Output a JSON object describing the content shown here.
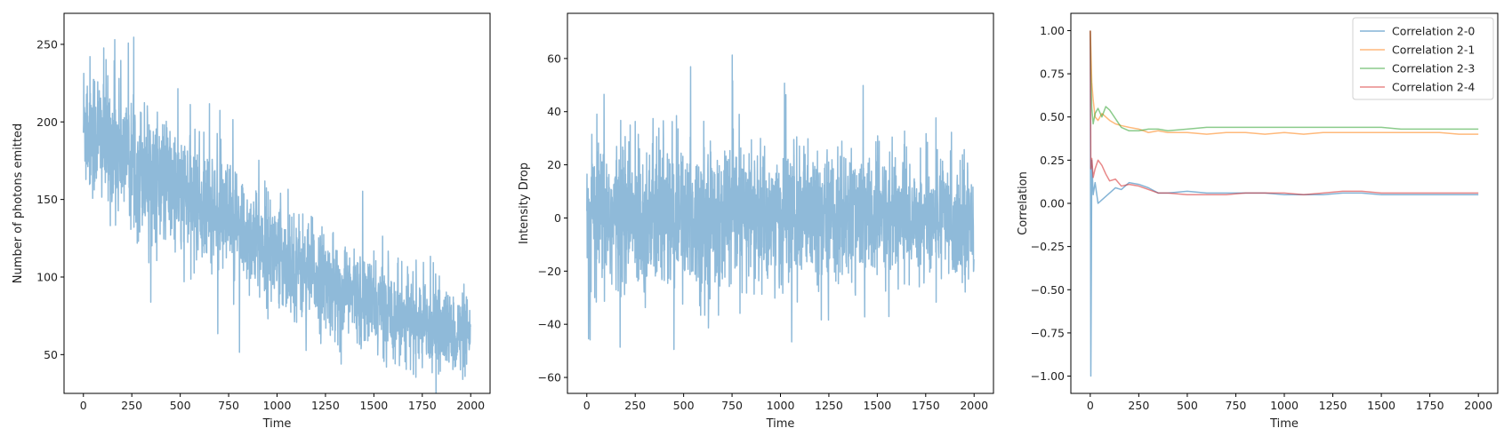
{
  "chart_data": [
    {
      "type": "line",
      "title": "",
      "xlabel": "Time",
      "ylabel": "Number of photons emitted",
      "xlim": [
        -100,
        2100
      ],
      "ylim": [
        25,
        270
      ],
      "xticks": [
        0,
        250,
        500,
        750,
        1000,
        1250,
        1500,
        1750,
        2000
      ],
      "yticks": [
        50,
        100,
        150,
        200,
        250
      ],
      "grid": false,
      "legend": "none",
      "series": [
        {
          "color": "#8fbad9",
          "n_points": 2000,
          "trend_x": [
            0,
            250,
            500,
            750,
            1000,
            1250,
            1500,
            1750,
            2000
          ],
          "trend_y": [
            200,
            175,
            155,
            135,
            115,
            97,
            82,
            70,
            60
          ],
          "peak_y": 261,
          "min_y": 37
        }
      ]
    },
    {
      "type": "line",
      "title": "",
      "xlabel": "Time",
      "ylabel": "Intensity Drop",
      "xlim": [
        -100,
        2100
      ],
      "ylim": [
        -66,
        77
      ],
      "xticks": [
        0,
        250,
        500,
        750,
        1000,
        1250,
        1500,
        1750,
        2000
      ],
      "yticks": [
        -60,
        -40,
        -20,
        0,
        20,
        40,
        60
      ],
      "grid": false,
      "legend": "none",
      "series": [
        {
          "color": "#8fbad9",
          "n_points": 2000,
          "center": 0,
          "peak_y": 72,
          "min_y": -60
        }
      ]
    },
    {
      "type": "line",
      "title": "",
      "xlabel": "Time",
      "ylabel": "Correlation",
      "xlim": [
        -100,
        2100
      ],
      "ylim": [
        -1.1,
        1.1
      ],
      "xticks": [
        0,
        250,
        500,
        750,
        1000,
        1250,
        1500,
        1750,
        2000
      ],
      "yticks": [
        -1.0,
        -0.75,
        -0.5,
        -0.25,
        0.0,
        0.25,
        0.5,
        0.75,
        1.0
      ],
      "grid": false,
      "legend": "top-right",
      "series": [
        {
          "name": "Correlation 2-0",
          "color": "#1f77b4",
          "x": [
            0,
            3,
            8,
            15,
            25,
            40,
            60,
            80,
            100,
            130,
            160,
            200,
            250,
            300,
            350,
            400,
            500,
            600,
            700,
            800,
            900,
            1000,
            1100,
            1200,
            1300,
            1400,
            1500,
            1600,
            1700,
            1800,
            1900,
            2000
          ],
          "y": [
            1.0,
            -1.0,
            0.25,
            0.05,
            0.12,
            0.0,
            0.02,
            0.04,
            0.06,
            0.09,
            0.08,
            0.12,
            0.11,
            0.09,
            0.06,
            0.06,
            0.07,
            0.06,
            0.06,
            0.06,
            0.06,
            0.05,
            0.05,
            0.05,
            0.06,
            0.06,
            0.05,
            0.05,
            0.05,
            0.05,
            0.05,
            0.05
          ]
        },
        {
          "name": "Correlation 2-1",
          "color": "#ff7f0e",
          "x": [
            0,
            3,
            8,
            15,
            25,
            40,
            60,
            80,
            100,
            130,
            160,
            200,
            250,
            300,
            350,
            400,
            500,
            600,
            700,
            800,
            900,
            1000,
            1100,
            1200,
            1300,
            1400,
            1500,
            1600,
            1700,
            1800,
            1900,
            2000
          ],
          "y": [
            1.0,
            0.9,
            0.7,
            0.6,
            0.5,
            0.48,
            0.52,
            0.5,
            0.48,
            0.46,
            0.45,
            0.44,
            0.43,
            0.41,
            0.42,
            0.41,
            0.41,
            0.4,
            0.41,
            0.41,
            0.4,
            0.41,
            0.4,
            0.41,
            0.41,
            0.41,
            0.41,
            0.41,
            0.41,
            0.41,
            0.4,
            0.4
          ]
        },
        {
          "name": "Correlation 2-3",
          "color": "#2ca02c",
          "x": [
            0,
            3,
            8,
            15,
            25,
            40,
            60,
            80,
            100,
            130,
            160,
            200,
            250,
            300,
            350,
            400,
            500,
            600,
            700,
            800,
            900,
            1000,
            1100,
            1200,
            1300,
            1400,
            1500,
            1600,
            1700,
            1800,
            1900,
            2000
          ],
          "y": [
            1.0,
            0.75,
            0.55,
            0.46,
            0.52,
            0.55,
            0.5,
            0.56,
            0.54,
            0.49,
            0.44,
            0.42,
            0.42,
            0.43,
            0.43,
            0.42,
            0.43,
            0.44,
            0.44,
            0.44,
            0.44,
            0.44,
            0.44,
            0.44,
            0.44,
            0.44,
            0.44,
            0.43,
            0.43,
            0.43,
            0.43,
            0.43
          ]
        },
        {
          "name": "Correlation 2-4",
          "color": "#d62728",
          "x": [
            0,
            3,
            8,
            15,
            25,
            40,
            60,
            80,
            100,
            130,
            160,
            200,
            250,
            300,
            350,
            400,
            500,
            600,
            700,
            800,
            900,
            1000,
            1100,
            1200,
            1300,
            1400,
            1500,
            1600,
            1700,
            1800,
            1900,
            2000
          ],
          "y": [
            1.0,
            0.2,
            0.26,
            0.15,
            0.2,
            0.25,
            0.22,
            0.17,
            0.13,
            0.14,
            0.1,
            0.11,
            0.1,
            0.08,
            0.06,
            0.06,
            0.05,
            0.05,
            0.05,
            0.06,
            0.06,
            0.06,
            0.05,
            0.06,
            0.07,
            0.07,
            0.06,
            0.06,
            0.06,
            0.06,
            0.06,
            0.06
          ]
        }
      ]
    }
  ]
}
